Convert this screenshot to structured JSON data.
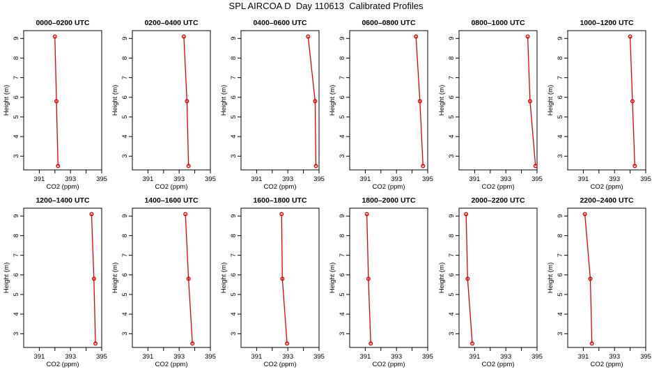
{
  "title": "SPL AIRCOA D  Day 110613  Calibrated Profiles",
  "colors": {
    "series": "#dd0000",
    "axis": "#000000"
  },
  "chart_data": {
    "type": "line",
    "layout": "grid-2x6",
    "xlabel": "CO2 (ppm)",
    "ylabel": "Height (m)",
    "xlim": [
      390,
      395
    ],
    "ylim": [
      2.3,
      9.4
    ],
    "xticks": [
      391,
      392,
      393,
      394,
      395
    ],
    "xtick_labels": [
      "391",
      "",
      "393",
      "",
      "395"
    ],
    "yticks": [
      3,
      4,
      5,
      6,
      7,
      8,
      9
    ],
    "heights": [
      9.1,
      5.8,
      2.5
    ],
    "panels": [
      {
        "title": "0000–0200 UTC",
        "co2": [
          392.0,
          392.1,
          392.2
        ]
      },
      {
        "title": "0200–0400 UTC",
        "co2": [
          393.3,
          393.5,
          393.6
        ]
      },
      {
        "title": "0400–0600 UTC",
        "co2": [
          394.3,
          394.75,
          394.8
        ]
      },
      {
        "title": "0600–0800 UTC",
        "co2": [
          394.25,
          394.5,
          394.7
        ]
      },
      {
        "title": "0800–1000 UTC",
        "co2": [
          394.4,
          394.55,
          394.9
        ]
      },
      {
        "title": "1000–1200 UTC",
        "co2": [
          394.0,
          394.15,
          394.3
        ]
      },
      {
        "title": "1200–1400 UTC",
        "co2": [
          394.35,
          394.5,
          394.6
        ]
      },
      {
        "title": "1400–1600 UTC",
        "co2": [
          393.4,
          393.6,
          393.85
        ]
      },
      {
        "title": "1600–1800 UTC",
        "co2": [
          392.6,
          392.65,
          392.95
        ]
      },
      {
        "title": "1800–2000 UTC",
        "co2": [
          391.1,
          391.2,
          391.35
        ]
      },
      {
        "title": "2000–2200 UTC",
        "co2": [
          390.45,
          390.55,
          390.85
        ]
      },
      {
        "title": "2200–2400 UTC",
        "co2": [
          391.1,
          391.45,
          391.55
        ]
      }
    ]
  }
}
